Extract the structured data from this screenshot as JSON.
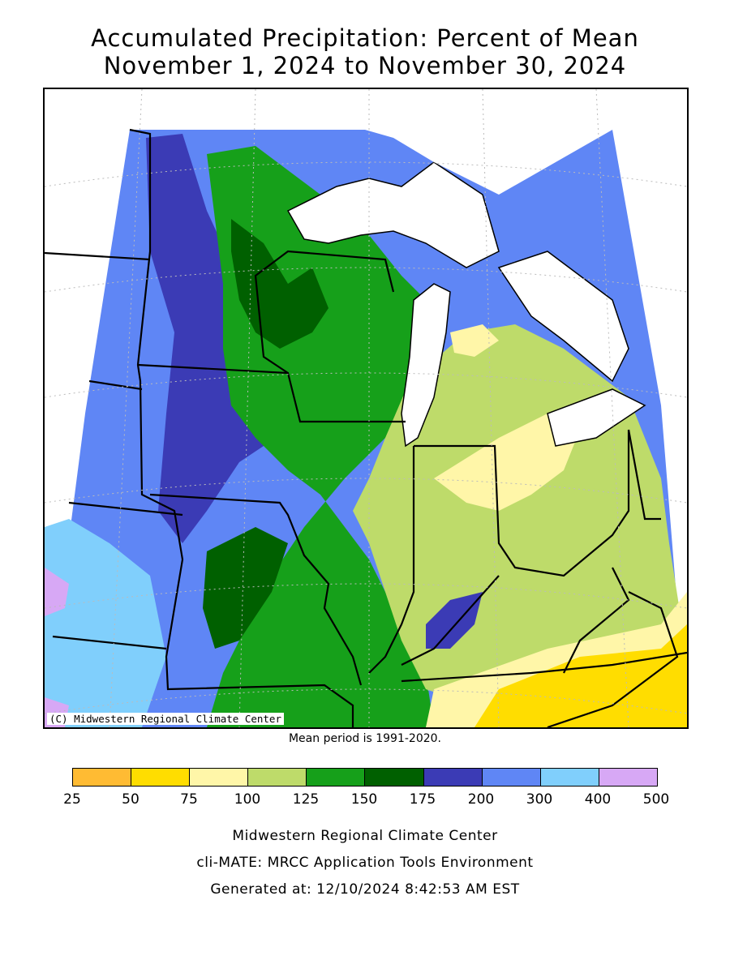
{
  "title": {
    "line1": "Accumulated Precipitation: Percent of Mean",
    "line2": "November 1, 2024 to November 30, 2024"
  },
  "map": {
    "copyright": "(C) Midwestern Regional Climate Center",
    "region": "Midwest US"
  },
  "mean_note": "Mean period is 1991-2020.",
  "legend": {
    "colors": [
      "#ffbb33",
      "#ffdd00",
      "#fff6a8",
      "#bedb6a",
      "#16a01a",
      "#006000",
      "#3b3bb5",
      "#5f86f5",
      "#80cffc",
      "#d7a8f5"
    ],
    "ticks": [
      "25",
      "50",
      "75",
      "100",
      "125",
      "150",
      "175",
      "200",
      "300",
      "400",
      "500"
    ]
  },
  "credits": {
    "line1": "Midwestern Regional Climate Center",
    "line2": "cli-MATE: MRCC Application Tools Environment",
    "line3": "Generated at: 12/10/2024 8:42:53 AM EST"
  }
}
